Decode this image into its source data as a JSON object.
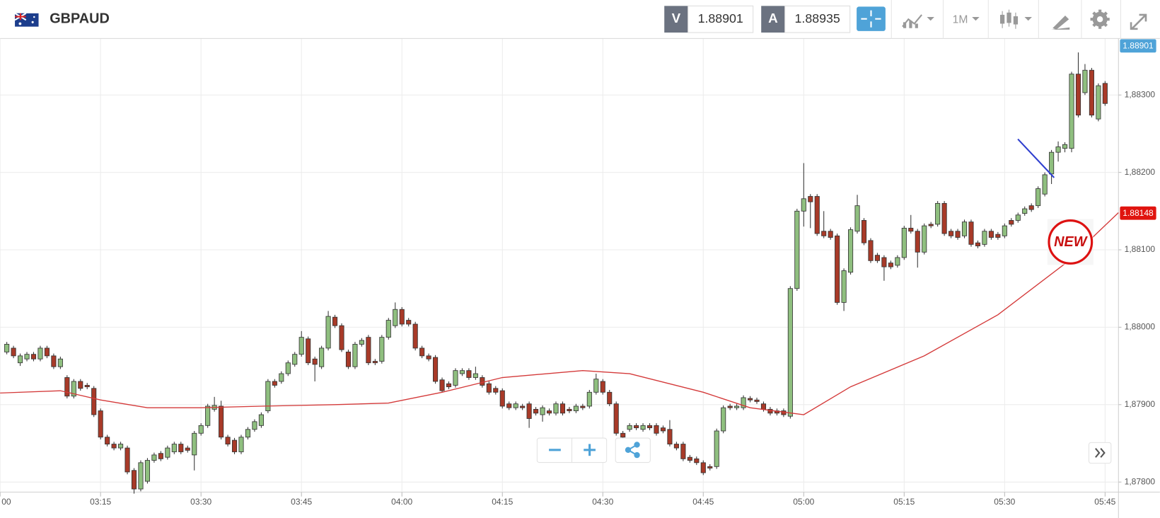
{
  "header": {
    "symbol": "GBPAUD",
    "sell_label": "V",
    "sell_price": "1.88901",
    "buy_label": "A",
    "buy_price": "1.88935",
    "timeframe": "1M"
  },
  "annotations": {
    "sticker": "NEW"
  },
  "chart_data": {
    "type": "candlestick",
    "up_color": "#8fbf7f",
    "down_color": "#a83a28",
    "outline_color": "#333333",
    "x": [
      "03:01",
      "03:02",
      "03:03",
      "03:04",
      "03:05",
      "03:06",
      "03:07",
      "03:08",
      "03:09",
      "03:10",
      "03:11",
      "03:12",
      "03:13",
      "03:14",
      "03:15",
      "03:16",
      "03:17",
      "03:18",
      "03:19",
      "03:20",
      "03:21",
      "03:22",
      "03:23",
      "03:24",
      "03:25",
      "03:26",
      "03:27",
      "03:28",
      "03:29",
      "03:30",
      "03:31",
      "03:32",
      "03:33",
      "03:34",
      "03:35",
      "03:36",
      "03:37",
      "03:38",
      "03:39",
      "03:40",
      "03:41",
      "03:42",
      "03:43",
      "03:44",
      "03:45",
      "03:46",
      "03:47",
      "03:48",
      "03:49",
      "03:50",
      "03:51",
      "03:52",
      "03:53",
      "03:54",
      "03:55",
      "03:56",
      "03:57",
      "03:58",
      "03:59",
      "04:00",
      "04:01",
      "04:02",
      "04:03",
      "04:04",
      "04:05",
      "04:06",
      "04:07",
      "04:08",
      "04:09",
      "04:10",
      "04:11",
      "04:12",
      "04:13",
      "04:14",
      "04:15",
      "04:16",
      "04:17",
      "04:18",
      "04:19",
      "04:20",
      "04:21",
      "04:22",
      "04:23",
      "04:24",
      "04:25",
      "04:26",
      "04:27",
      "04:28",
      "04:29",
      "04:30",
      "04:31",
      "04:32",
      "04:33",
      "04:34",
      "04:35",
      "04:36",
      "04:37",
      "04:38",
      "04:39",
      "04:40",
      "04:41",
      "04:42",
      "04:43",
      "04:44",
      "04:45",
      "04:46",
      "04:47",
      "04:48",
      "04:49",
      "04:50",
      "04:51",
      "04:52",
      "04:53",
      "04:54",
      "04:55",
      "04:56",
      "04:57",
      "04:58",
      "04:59",
      "05:00",
      "05:01",
      "05:02",
      "05:03",
      "05:04",
      "05:05",
      "05:06",
      "05:07",
      "05:08",
      "05:09",
      "05:10",
      "05:11",
      "05:12",
      "05:13",
      "05:14",
      "05:15",
      "05:16",
      "05:17",
      "05:18",
      "05:19",
      "05:20",
      "05:21",
      "05:22",
      "05:23",
      "05:24",
      "05:25",
      "05:26",
      "05:27",
      "05:28",
      "05:29",
      "05:30",
      "05:31",
      "05:32",
      "05:33",
      "05:34",
      "05:35",
      "05:36",
      "05:37",
      "05:38",
      "05:39",
      "05:40",
      "05:41",
      "05:42",
      "05:43",
      "05:44",
      "05:45"
    ],
    "open": [
      1.87968,
      1.87973,
      1.87954,
      1.87959,
      1.87965,
      1.87959,
      1.87973,
      1.87963,
      1.87949,
      1.87935,
      1.87911,
      1.8793,
      1.87925,
      1.87921,
      1.87892,
      1.87858,
      1.87849,
      1.87844,
      1.87844,
      1.87815,
      1.87791,
      1.87801,
      1.87828,
      1.87837,
      1.87832,
      1.87839,
      1.87849,
      1.87844,
      1.87835,
      1.87863,
      1.87873,
      1.87894,
      1.87898,
      1.87858,
      1.87854,
      1.87839,
      1.87858,
      1.87868,
      1.87873,
      1.87892,
      1.8793,
      1.8793,
      1.8794,
      1.87952,
      1.87965,
      1.87985,
      1.87959,
      1.87949,
      1.87973,
      1.88013,
      1.88002,
      1.87968,
      1.87949,
      1.87978,
      1.87987,
      1.87956,
      1.87956,
      1.87987,
      1.88002,
      1.88023,
      1.88009,
      1.88004,
      1.87973,
      1.87963,
      1.87961,
      1.87932,
      1.87927,
      1.87925,
      1.8794,
      1.87944,
      1.87935,
      1.87935,
      1.87927,
      1.87921,
      1.87918,
      1.87901,
      1.87896,
      1.87898,
      1.87901,
      1.87894,
      1.87887,
      1.87892,
      1.87889,
      1.87901,
      1.87894,
      1.87892,
      1.87898,
      1.87898,
      1.87916,
      1.8793,
      1.87916,
      1.87901,
      1.87863,
      1.87868,
      1.87873,
      1.87868,
      1.87873,
      1.87873,
      1.8787,
      1.87868,
      1.87849,
      1.87849,
      1.87832,
      1.8783,
      1.87825,
      1.8782,
      1.8782,
      1.87866,
      1.87898,
      1.87896,
      1.87896,
      1.87908,
      1.87906,
      1.87901,
      1.87894,
      1.87892,
      1.87892,
      1.87885,
      1.8805,
      1.8815,
      1.88169,
      1.88169,
      1.88124,
      1.88124,
      1.88118,
      1.88032,
      1.88071,
      1.88124,
      1.88138,
      1.88112,
      1.88093,
      1.8809,
      1.88083,
      1.8808,
      1.8809,
      1.88128,
      1.88124,
      1.88097,
      1.88133,
      1.88133,
      1.8816,
      1.88124,
      1.88124,
      1.88118,
      1.88136,
      1.88109,
      1.88107,
      1.88124,
      1.8812,
      1.88118,
      1.88138,
      1.88138,
      1.88147,
      1.88157,
      1.88157,
      1.88172,
      1.88198,
      1.88226,
      1.88231,
      1.88231,
      1.88327,
      1.88303,
      1.88332,
      1.88269,
      1.88315
    ],
    "high": [
      1.87981,
      1.87976,
      1.87966,
      1.87968,
      1.87968,
      1.87976,
      1.87976,
      1.87966,
      1.87962,
      1.87938,
      1.87933,
      1.87933,
      1.87928,
      1.87924,
      1.87895,
      1.87861,
      1.87852,
      1.87852,
      1.87847,
      1.87818,
      1.87828,
      1.87831,
      1.87838,
      1.8784,
      1.87847,
      1.87852,
      1.87852,
      1.87847,
      1.87866,
      1.87876,
      1.87901,
      1.8791,
      1.87905,
      1.87861,
      1.87857,
      1.87861,
      1.87871,
      1.87881,
      1.8789,
      1.87933,
      1.87933,
      1.87943,
      1.87957,
      1.87968,
      1.87995,
      1.87988,
      1.87962,
      1.87976,
      1.88021,
      1.88016,
      1.88005,
      1.87971,
      1.87981,
      1.87986,
      1.8799,
      1.87959,
      1.8799,
      1.88012,
      1.88032,
      1.88026,
      1.88012,
      1.88007,
      1.87976,
      1.87966,
      1.87964,
      1.87935,
      1.8793,
      1.87947,
      1.87947,
      1.87947,
      1.87949,
      1.87938,
      1.8793,
      1.87924,
      1.87921,
      1.87904,
      1.87904,
      1.87901,
      1.87904,
      1.87897,
      1.87899,
      1.87895,
      1.87904,
      1.87904,
      1.87897,
      1.87901,
      1.87901,
      1.87919,
      1.8794,
      1.87933,
      1.87919,
      1.87904,
      1.87866,
      1.87876,
      1.87876,
      1.87876,
      1.87876,
      1.87876,
      1.87873,
      1.8788,
      1.87852,
      1.87852,
      1.87835,
      1.87833,
      1.87828,
      1.87823,
      1.87869,
      1.87899,
      1.87901,
      1.87901,
      1.87912,
      1.87911,
      1.87909,
      1.87904,
      1.87897,
      1.87895,
      1.87895,
      1.88053,
      1.88153,
      1.88212,
      1.88172,
      1.88172,
      1.8815,
      1.88127,
      1.88121,
      1.88076,
      1.88129,
      1.88171,
      1.88141,
      1.88115,
      1.88096,
      1.88093,
      1.88086,
      1.88093,
      1.88131,
      1.88145,
      1.88127,
      1.88134,
      1.88136,
      1.88163,
      1.88163,
      1.88127,
      1.88127,
      1.88139,
      1.88139,
      1.88112,
      1.88127,
      1.88127,
      1.88123,
      1.88134,
      1.88141,
      1.88148,
      1.88156,
      1.8816,
      1.88182,
      1.882,
      1.88229,
      1.8824,
      1.88239,
      1.8833,
      1.88355,
      1.8834,
      1.88335,
      1.88315,
      1.88318
    ],
    "low": [
      1.87965,
      1.8796,
      1.8795,
      1.87956,
      1.87956,
      1.87956,
      1.8796,
      1.87946,
      1.87946,
      1.87908,
      1.87908,
      1.87918,
      1.8792,
      1.87884,
      1.87855,
      1.87846,
      1.87841,
      1.87841,
      1.8781,
      1.87785,
      1.87788,
      1.87798,
      1.87825,
      1.87827,
      1.87829,
      1.87836,
      1.87836,
      1.87838,
      1.87815,
      1.8786,
      1.8787,
      1.87891,
      1.87855,
      1.87846,
      1.87836,
      1.87836,
      1.87855,
      1.87865,
      1.8787,
      1.87889,
      1.87922,
      1.87927,
      1.87937,
      1.87949,
      1.87962,
      1.87951,
      1.8793,
      1.87946,
      1.8797,
      1.87999,
      1.87968,
      1.87946,
      1.87946,
      1.87975,
      1.87951,
      1.87951,
      1.87953,
      1.87984,
      1.87999,
      1.88001,
      1.88001,
      1.8797,
      1.8796,
      1.87956,
      1.87927,
      1.87916,
      1.8792,
      1.87922,
      1.87937,
      1.87932,
      1.87932,
      1.87922,
      1.87913,
      1.87913,
      1.87895,
      1.87893,
      1.87893,
      1.87893,
      1.8787,
      1.87886,
      1.87878,
      1.87886,
      1.87886,
      1.87886,
      1.87889,
      1.87889,
      1.87893,
      1.87895,
      1.87913,
      1.87913,
      1.87898,
      1.8786,
      1.87855,
      1.87865,
      1.87867,
      1.87865,
      1.87867,
      1.8786,
      1.87863,
      1.87846,
      1.87841,
      1.87827,
      1.87825,
      1.87822,
      1.87809,
      1.87815,
      1.87817,
      1.87863,
      1.87893,
      1.87893,
      1.87893,
      1.87903,
      1.87901,
      1.87891,
      1.87886,
      1.87886,
      1.87884,
      1.87882,
      1.88047,
      1.8813,
      1.88128,
      1.88118,
      1.88115,
      1.88113,
      1.88029,
      1.88021,
      1.88068,
      1.88121,
      1.88106,
      1.88083,
      1.88083,
      1.8806,
      1.88075,
      1.88077,
      1.88087,
      1.88121,
      1.88077,
      1.88094,
      1.88128,
      1.8813,
      1.88118,
      1.88115,
      1.88113,
      1.88115,
      1.88104,
      1.88102,
      1.88104,
      1.88113,
      1.88113,
      1.88115,
      1.8813,
      1.88135,
      1.88144,
      1.88149,
      1.88154,
      1.88169,
      1.88185,
      1.88214,
      1.88226,
      1.88226,
      1.88271,
      1.883,
      1.88271,
      1.88266,
      1.88286
    ],
    "close": [
      1.87978,
      1.87963,
      1.87963,
      1.87965,
      1.87959,
      1.87973,
      1.87963,
      1.87949,
      1.87959,
      1.87911,
      1.8793,
      1.87921,
      1.87923,
      1.87887,
      1.87858,
      1.87849,
      1.87844,
      1.87849,
      1.87813,
      1.87791,
      1.87825,
      1.87828,
      1.87835,
      1.8783,
      1.87844,
      1.87849,
      1.87839,
      1.87841,
      1.87863,
      1.87873,
      1.87898,
      1.87899,
      1.87858,
      1.87849,
      1.87839,
      1.87858,
      1.87868,
      1.87878,
      1.87887,
      1.8793,
      1.87925,
      1.8794,
      1.87954,
      1.87965,
      1.87987,
      1.87954,
      1.87952,
      1.87973,
      1.88014,
      1.88002,
      1.87971,
      1.87949,
      1.87978,
      1.87983,
      1.87954,
      1.87954,
      1.87987,
      1.88009,
      1.88023,
      1.88004,
      1.88004,
      1.87973,
      1.87963,
      1.87959,
      1.8793,
      1.87918,
      1.87923,
      1.87944,
      1.87944,
      1.87935,
      1.8794,
      1.87925,
      1.87916,
      1.87916,
      1.87898,
      1.87896,
      1.87901,
      1.87896,
      1.87882,
      1.87889,
      1.87896,
      1.87889,
      1.87901,
      1.87889,
      1.87892,
      1.87898,
      1.87896,
      1.87916,
      1.87933,
      1.87916,
      1.87901,
      1.87863,
      1.87858,
      1.87873,
      1.8787,
      1.87873,
      1.8787,
      1.87863,
      1.87866,
      1.87849,
      1.87844,
      1.8783,
      1.87828,
      1.87825,
      1.87812,
      1.87818,
      1.87866,
      1.87896,
      1.87896,
      1.87898,
      1.87909,
      1.87906,
      1.87904,
      1.87894,
      1.87889,
      1.87889,
      1.87887,
      1.8805,
      1.8815,
      1.88166,
      1.88162,
      1.88121,
      1.88118,
      1.88116,
      1.88032,
      1.88073,
      1.88126,
      1.88157,
      1.88109,
      1.88086,
      1.88086,
      1.88078,
      1.88078,
      1.8809,
      1.88128,
      1.88124,
      1.88097,
      1.88131,
      1.88131,
      1.8816,
      1.88121,
      1.88118,
      1.88116,
      1.88136,
      1.88107,
      1.88105,
      1.88124,
      1.88116,
      1.88116,
      1.88131,
      1.88133,
      1.88145,
      1.88153,
      1.88152,
      1.88179,
      1.88197,
      1.88226,
      1.88233,
      1.88236,
      1.88327,
      1.88274,
      1.88332,
      1.88274,
      1.88312,
      1.88289
    ],
    "moving_average": {
      "color": "#d43a3a",
      "x": [
        "03:00",
        "03:09",
        "03:15",
        "03:22",
        "03:30",
        "03:39",
        "03:50",
        "03:58",
        "04:06",
        "04:15",
        "04:27",
        "04:34",
        "04:45",
        "04:52",
        "05:00",
        "05:07",
        "05:18",
        "05:29",
        "05:39",
        "05:47"
      ],
      "values": [
        1.87915,
        1.87918,
        1.87906,
        1.87896,
        1.87896,
        1.87898,
        1.879,
        1.87902,
        1.87916,
        1.87935,
        1.87944,
        1.8794,
        1.87916,
        1.87896,
        1.87887,
        1.87923,
        1.87963,
        1.88016,
        1.88082,
        1.88148
      ]
    },
    "xlim": [
      "03:00",
      "05:47"
    ],
    "xticks": [
      {
        "value": "03:00",
        "label": "00"
      },
      "03:15",
      "03:30",
      "03:45",
      "04:00",
      "04:15",
      "04:30",
      "04:45",
      "05:00",
      "05:15",
      "05:30",
      "05:45"
    ],
    "ylim": [
      1.87787,
      1.88373
    ],
    "yticks": [
      {
        "value": 1.878,
        "label": "1,87800"
      },
      {
        "value": 1.879,
        "label": "1,87900"
      },
      {
        "value": 1.88,
        "label": "1,88000"
      },
      {
        "value": 1.881,
        "label": "1,88100"
      },
      {
        "value": 1.882,
        "label": "1,88200"
      },
      {
        "value": 1.883,
        "label": "1,88300"
      }
    ],
    "grid": true,
    "price_tags": [
      {
        "label": "1.88901",
        "color": "#4fa3d8"
      },
      {
        "label": "1.88148",
        "color": "#e0140f"
      }
    ]
  }
}
